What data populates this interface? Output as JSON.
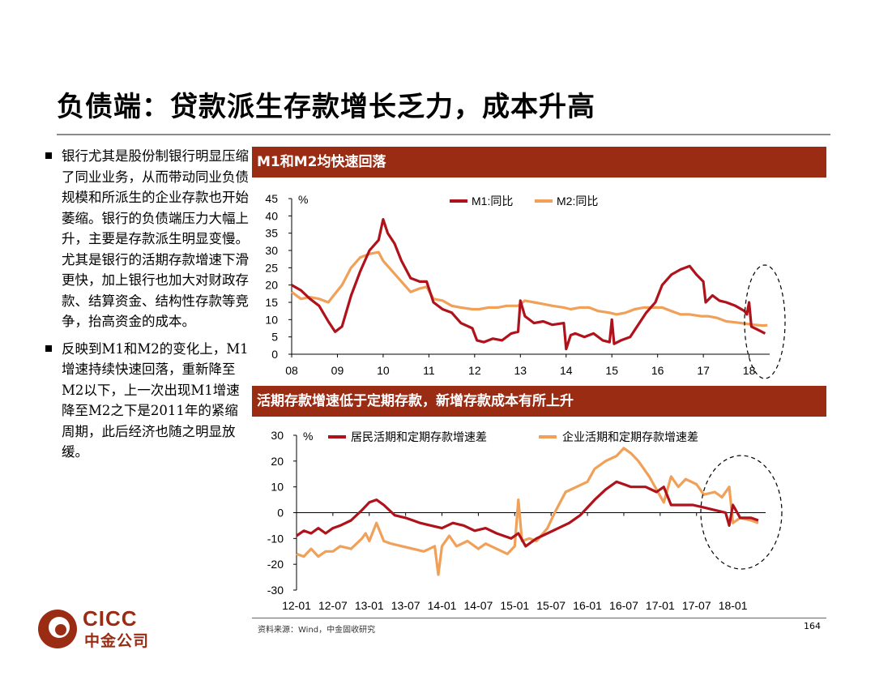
{
  "slide": {
    "title": "负债端：贷款派生存款增长乏力，成本升高",
    "bullets": [
      "银行尤其是股份制银行明显压缩了同业业务，从而带动同业负债规模和所派生的企业存款也开始萎缩。银行的负债端压力大幅上升，主要是存款派生明显变慢。尤其是银行的活期存款增速下滑更快，加上银行也加大对财政存款、结算资金、结构性存款等竞争，抬高资金的成本。",
      "反映到M1和M2的变化上，M1增速持续快速回落，重新降至M2以下，上一次出现M1增速降至M2之下是2011年的紧缩周期，此后经济也随之明显放缓。"
    ],
    "source": "资料来源：Wind，中金固收研究",
    "page_number": "164",
    "logo": {
      "line1": "CICC",
      "line2": "中金公司"
    }
  },
  "colors": {
    "dark_red": "#b0121b",
    "orange": "#f0a058",
    "panel_bar": "#9b2c14"
  },
  "chart_data": [
    {
      "type": "line",
      "title": "M1和M2均快速回落",
      "ylabel": "%",
      "ylim": [
        0,
        45
      ],
      "yticks": [
        0,
        5,
        10,
        15,
        20,
        25,
        30,
        35,
        40,
        45
      ],
      "xlim": [
        2008.0,
        2018.45
      ],
      "xticks": [
        {
          "label": "08",
          "x": 2008.0
        },
        {
          "label": "09",
          "x": 2009.0
        },
        {
          "label": "10",
          "x": 2010.0
        },
        {
          "label": "11",
          "x": 2011.0
        },
        {
          "label": "12",
          "x": 2012.0
        },
        {
          "label": "13",
          "x": 2013.0
        },
        {
          "label": "14",
          "x": 2014.0
        },
        {
          "label": "15",
          "x": 2015.0
        },
        {
          "label": "16",
          "x": 2016.0
        },
        {
          "label": "17",
          "x": 2017.0
        },
        {
          "label": "18",
          "x": 2018.0
        }
      ],
      "legend_position": "top-center",
      "series": [
        {
          "name": "M1:同比",
          "color": "#b0121b",
          "points": [
            [
              2008.0,
              20
            ],
            [
              2008.2,
              18.5
            ],
            [
              2008.4,
              16
            ],
            [
              2008.6,
              14
            ],
            [
              2008.8,
              9.5
            ],
            [
              2008.95,
              6.5
            ],
            [
              2009.1,
              8
            ],
            [
              2009.3,
              17
            ],
            [
              2009.5,
              24
            ],
            [
              2009.7,
              30
            ],
            [
              2009.9,
              33
            ],
            [
              2010.0,
              39
            ],
            [
              2010.1,
              35
            ],
            [
              2010.25,
              32
            ],
            [
              2010.4,
              27
            ],
            [
              2010.6,
              22
            ],
            [
              2010.8,
              21
            ],
            [
              2010.95,
              21
            ],
            [
              2011.1,
              15
            ],
            [
              2011.3,
              13
            ],
            [
              2011.5,
              12
            ],
            [
              2011.7,
              9
            ],
            [
              2011.95,
              7.5
            ],
            [
              2012.05,
              4
            ],
            [
              2012.2,
              3.5
            ],
            [
              2012.4,
              4.5
            ],
            [
              2012.6,
              4
            ],
            [
              2012.8,
              6
            ],
            [
              2012.95,
              6.5
            ],
            [
              2013.0,
              15.5
            ],
            [
              2013.1,
              11
            ],
            [
              2013.3,
              9
            ],
            [
              2013.5,
              9.5
            ],
            [
              2013.7,
              8.5
            ],
            [
              2013.95,
              9
            ],
            [
              2014.0,
              1.5
            ],
            [
              2014.1,
              5.5
            ],
            [
              2014.2,
              6
            ],
            [
              2014.4,
              5
            ],
            [
              2014.6,
              6
            ],
            [
              2014.8,
              4
            ],
            [
              2014.95,
              3.5
            ],
            [
              2015.0,
              10
            ],
            [
              2015.05,
              3
            ],
            [
              2015.2,
              4
            ],
            [
              2015.4,
              5
            ],
            [
              2015.6,
              9
            ],
            [
              2015.75,
              12
            ],
            [
              2015.95,
              15
            ],
            [
              2016.1,
              20
            ],
            [
              2016.3,
              23
            ],
            [
              2016.5,
              24.5
            ],
            [
              2016.7,
              25.5
            ],
            [
              2016.85,
              23
            ],
            [
              2017.0,
              21
            ],
            [
              2017.05,
              15
            ],
            [
              2017.2,
              17
            ],
            [
              2017.35,
              15.5
            ],
            [
              2017.5,
              15
            ],
            [
              2017.7,
              14
            ],
            [
              2017.9,
              12.5
            ],
            [
              2017.95,
              11.5
            ],
            [
              2018.0,
              15
            ],
            [
              2018.05,
              8
            ],
            [
              2018.2,
              7
            ],
            [
              2018.35,
              6
            ]
          ]
        },
        {
          "name": "M2:同比",
          "color": "#f0a058",
          "points": [
            [
              2008.0,
              18
            ],
            [
              2008.2,
              16
            ],
            [
              2008.4,
              16.5
            ],
            [
              2008.6,
              16
            ],
            [
              2008.8,
              15
            ],
            [
              2008.95,
              17.5
            ],
            [
              2009.1,
              20
            ],
            [
              2009.3,
              25
            ],
            [
              2009.5,
              28
            ],
            [
              2009.7,
              29
            ],
            [
              2009.9,
              29.5
            ],
            [
              2010.0,
              27
            ],
            [
              2010.2,
              24
            ],
            [
              2010.4,
              21
            ],
            [
              2010.6,
              18
            ],
            [
              2010.8,
              19
            ],
            [
              2010.95,
              19.5
            ],
            [
              2011.1,
              16
            ],
            [
              2011.3,
              15.5
            ],
            [
              2011.5,
              14
            ],
            [
              2011.7,
              13.5
            ],
            [
              2011.95,
              13
            ],
            [
              2012.1,
              13
            ],
            [
              2012.3,
              13.5
            ],
            [
              2012.5,
              13.5
            ],
            [
              2012.7,
              14
            ],
            [
              2012.95,
              14
            ],
            [
              2013.1,
              15.5
            ],
            [
              2013.3,
              15
            ],
            [
              2013.5,
              14.5
            ],
            [
              2013.7,
              14
            ],
            [
              2013.95,
              13.5
            ],
            [
              2014.1,
              13
            ],
            [
              2014.3,
              13.5
            ],
            [
              2014.5,
              13.5
            ],
            [
              2014.7,
              12.5
            ],
            [
              2014.95,
              12
            ],
            [
              2015.1,
              11.5
            ],
            [
              2015.3,
              12
            ],
            [
              2015.5,
              13
            ],
            [
              2015.7,
              13.5
            ],
            [
              2015.95,
              13.5
            ],
            [
              2016.1,
              13.5
            ],
            [
              2016.3,
              12.5
            ],
            [
              2016.5,
              11.5
            ],
            [
              2016.7,
              11.5
            ],
            [
              2016.95,
              11
            ],
            [
              2017.1,
              11
            ],
            [
              2017.3,
              10.5
            ],
            [
              2017.5,
              9.5
            ],
            [
              2017.7,
              9.2
            ],
            [
              2017.95,
              8.8
            ],
            [
              2018.1,
              8.5
            ],
            [
              2018.3,
              8.3
            ],
            [
              2018.4,
              8.4
            ]
          ]
        }
      ]
    },
    {
      "type": "line",
      "title": "活期存款增速低于定期存款，新增存款成本有所上升",
      "ylabel": "%",
      "ylim": [
        -30,
        30
      ],
      "yticks": [
        -30,
        -20,
        -10,
        0,
        10,
        20,
        30
      ],
      "xlim": [
        2012.0,
        2018.45
      ],
      "xticks": [
        {
          "label": "12-01",
          "x": 2012.0
        },
        {
          "label": "12-07",
          "x": 2012.5
        },
        {
          "label": "13-01",
          "x": 2013.0
        },
        {
          "label": "13-07",
          "x": 2013.5
        },
        {
          "label": "14-01",
          "x": 2014.0
        },
        {
          "label": "14-07",
          "x": 2014.5
        },
        {
          "label": "15-01",
          "x": 2015.0
        },
        {
          "label": "15-07",
          "x": 2015.5
        },
        {
          "label": "16-01",
          "x": 2016.0
        },
        {
          "label": "16-07",
          "x": 2016.5
        },
        {
          "label": "17-01",
          "x": 2017.0
        },
        {
          "label": "17-07",
          "x": 2017.5
        },
        {
          "label": "18-01",
          "x": 2018.0
        }
      ],
      "legend_position": "top",
      "series": [
        {
          "name": "居民活期和定期存款增速差",
          "color": "#b0121b",
          "points": [
            [
              2012.0,
              -9
            ],
            [
              2012.1,
              -7
            ],
            [
              2012.2,
              -8
            ],
            [
              2012.3,
              -6
            ],
            [
              2012.4,
              -8
            ],
            [
              2012.5,
              -6
            ],
            [
              2012.6,
              -5
            ],
            [
              2012.75,
              -3
            ],
            [
              2012.9,
              1
            ],
            [
              2013.0,
              4
            ],
            [
              2013.1,
              5
            ],
            [
              2013.2,
              3
            ],
            [
              2013.35,
              -1
            ],
            [
              2013.5,
              -2
            ],
            [
              2013.7,
              -4
            ],
            [
              2013.85,
              -5
            ],
            [
              2014.0,
              -6
            ],
            [
              2014.15,
              -4
            ],
            [
              2014.3,
              -5
            ],
            [
              2014.45,
              -7
            ],
            [
              2014.6,
              -6
            ],
            [
              2014.75,
              -8
            ],
            [
              2014.95,
              -10
            ],
            [
              2015.05,
              -8
            ],
            [
              2015.15,
              -13
            ],
            [
              2015.3,
              -10
            ],
            [
              2015.45,
              -8
            ],
            [
              2015.6,
              -6
            ],
            [
              2015.75,
              -4
            ],
            [
              2015.9,
              -1
            ],
            [
              2016.0,
              2
            ],
            [
              2016.1,
              5
            ],
            [
              2016.25,
              9
            ],
            [
              2016.4,
              12
            ],
            [
              2016.5,
              11
            ],
            [
              2016.6,
              10
            ],
            [
              2016.8,
              10
            ],
            [
              2016.95,
              8
            ],
            [
              2017.05,
              10
            ],
            [
              2017.15,
              3
            ],
            [
              2017.3,
              3
            ],
            [
              2017.45,
              3
            ],
            [
              2017.6,
              2
            ],
            [
              2017.75,
              1
            ],
            [
              2017.9,
              0
            ],
            [
              2017.95,
              -5
            ],
            [
              2018.0,
              3
            ],
            [
              2018.1,
              -2
            ],
            [
              2018.25,
              -2
            ],
            [
              2018.35,
              -3
            ]
          ]
        },
        {
          "name": "企业活期和定期存款增速差",
          "color": "#f0a058",
          "points": [
            [
              2012.0,
              -16
            ],
            [
              2012.1,
              -17
            ],
            [
              2012.2,
              -14
            ],
            [
              2012.3,
              -17
            ],
            [
              2012.4,
              -15
            ],
            [
              2012.5,
              -15
            ],
            [
              2012.6,
              -13
            ],
            [
              2012.75,
              -14
            ],
            [
              2012.9,
              -10
            ],
            [
              2012.95,
              -8
            ],
            [
              2013.0,
              -11
            ],
            [
              2013.1,
              -4
            ],
            [
              2013.2,
              -11
            ],
            [
              2013.3,
              -12
            ],
            [
              2013.45,
              -13
            ],
            [
              2013.6,
              -14
            ],
            [
              2013.75,
              -15
            ],
            [
              2013.9,
              -13
            ],
            [
              2013.95,
              -24
            ],
            [
              2014.0,
              -13
            ],
            [
              2014.1,
              -9
            ],
            [
              2014.2,
              -13
            ],
            [
              2014.35,
              -11
            ],
            [
              2014.5,
              -14
            ],
            [
              2014.6,
              -12
            ],
            [
              2014.75,
              -14
            ],
            [
              2014.9,
              -16
            ],
            [
              2015.0,
              -13
            ],
            [
              2015.05,
              5
            ],
            [
              2015.1,
              -11
            ],
            [
              2015.2,
              -10
            ],
            [
              2015.3,
              -11
            ],
            [
              2015.45,
              -6
            ],
            [
              2015.55,
              0
            ],
            [
              2015.7,
              8
            ],
            [
              2015.85,
              10
            ],
            [
              2016.0,
              12
            ],
            [
              2016.1,
              17
            ],
            [
              2016.25,
              20
            ],
            [
              2016.4,
              22
            ],
            [
              2016.5,
              25
            ],
            [
              2016.6,
              23
            ],
            [
              2016.7,
              20
            ],
            [
              2016.85,
              14
            ],
            [
              2016.95,
              9
            ],
            [
              2017.05,
              4
            ],
            [
              2017.15,
              14
            ],
            [
              2017.25,
              10
            ],
            [
              2017.35,
              13
            ],
            [
              2017.5,
              11
            ],
            [
              2017.6,
              7
            ],
            [
              2017.75,
              8
            ],
            [
              2017.85,
              6
            ],
            [
              2017.95,
              10
            ],
            [
              2018.0,
              -4
            ],
            [
              2018.1,
              -2
            ],
            [
              2018.25,
              -3
            ],
            [
              2018.35,
              -4
            ]
          ]
        }
      ]
    }
  ]
}
